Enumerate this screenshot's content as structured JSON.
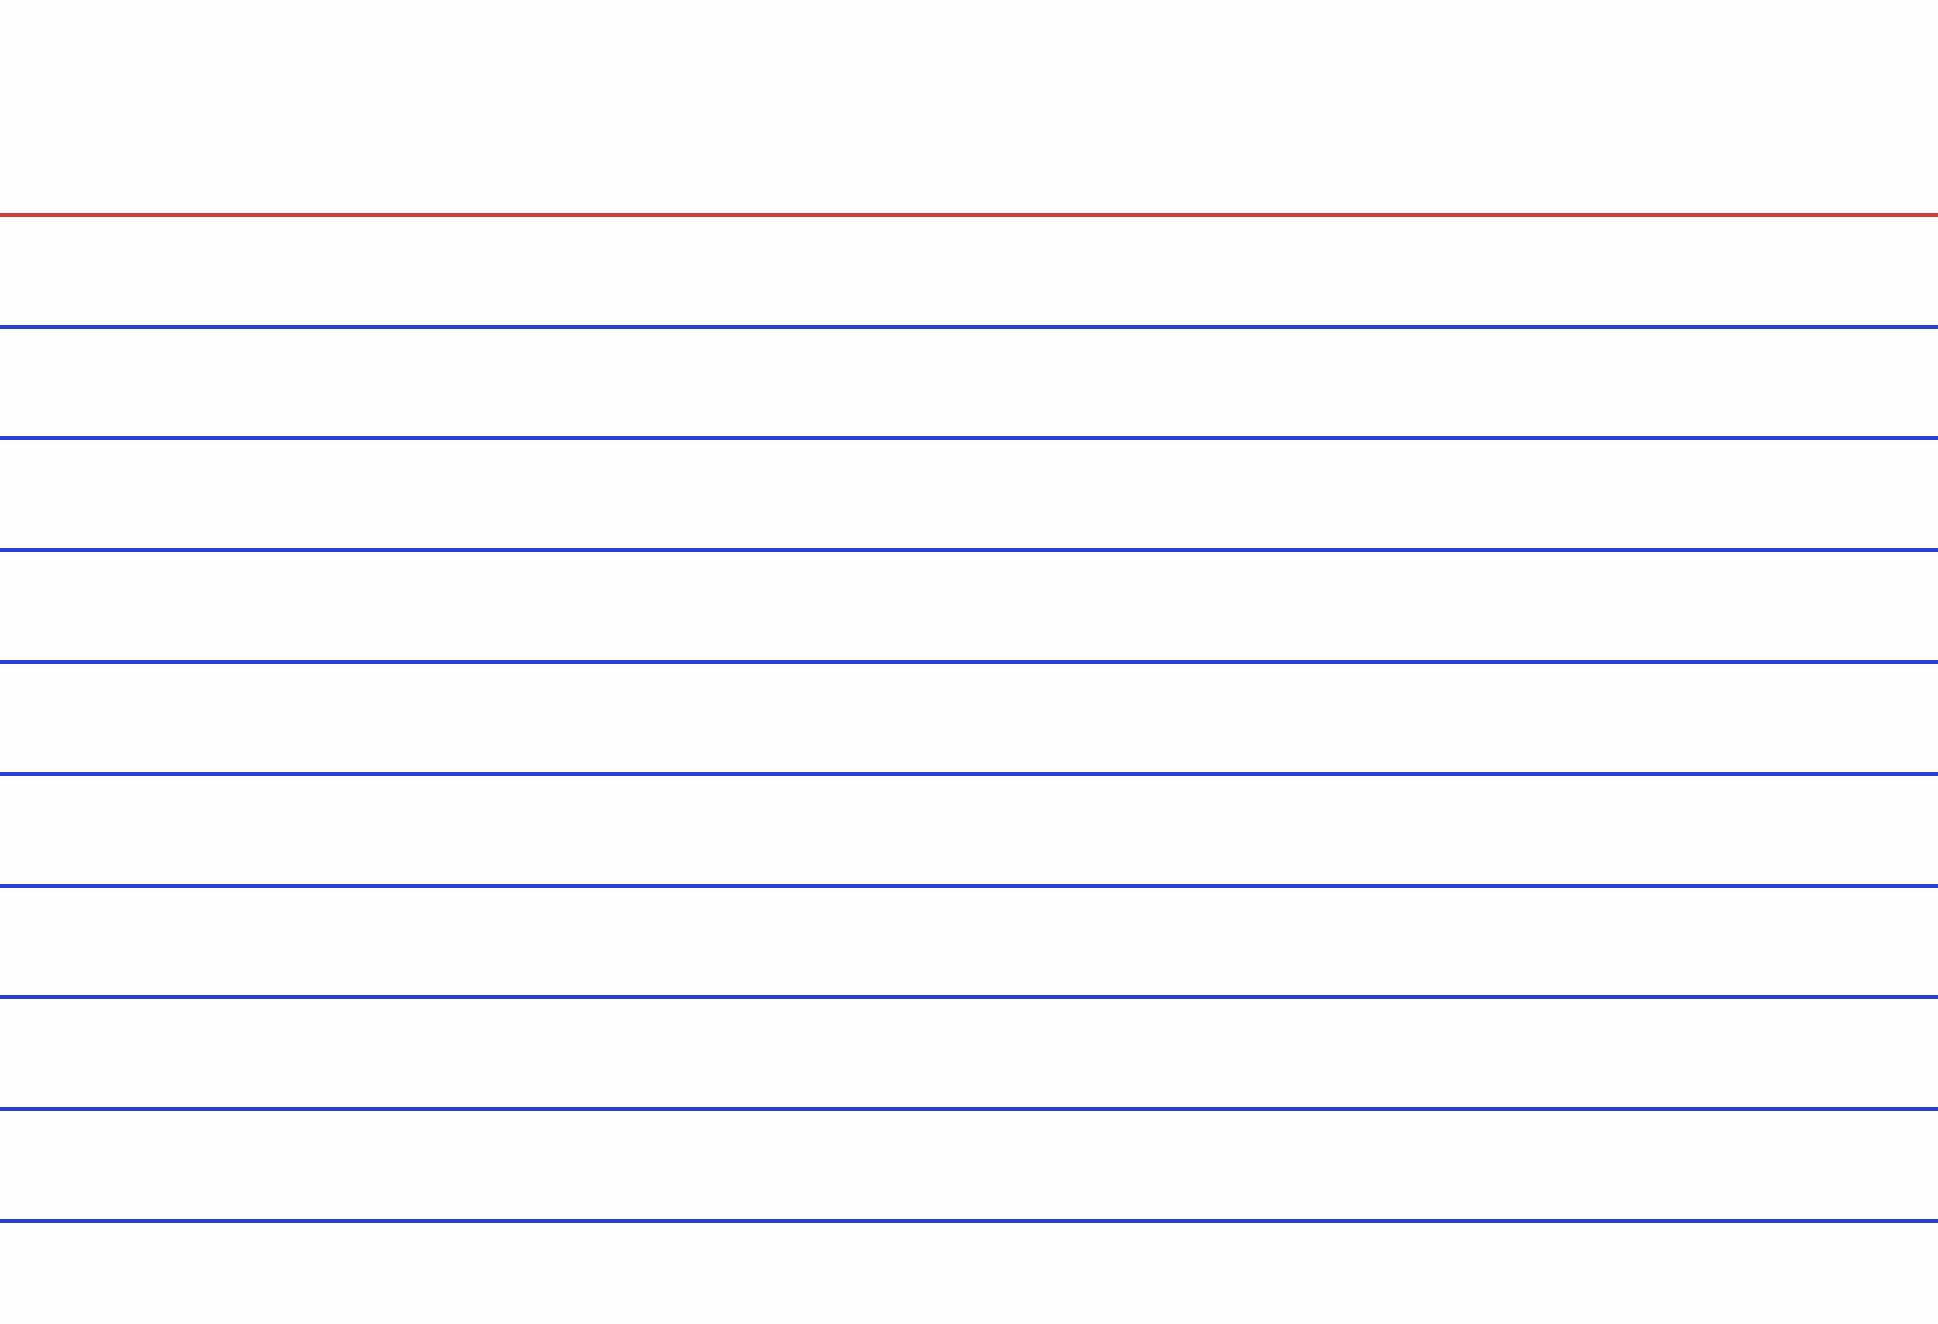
{
  "card": {
    "paper_color": "#fefefe",
    "header_rule_color": "#d63a3a",
    "body_rule_color": "#2a3fd6",
    "body_rule_count": 9
  }
}
